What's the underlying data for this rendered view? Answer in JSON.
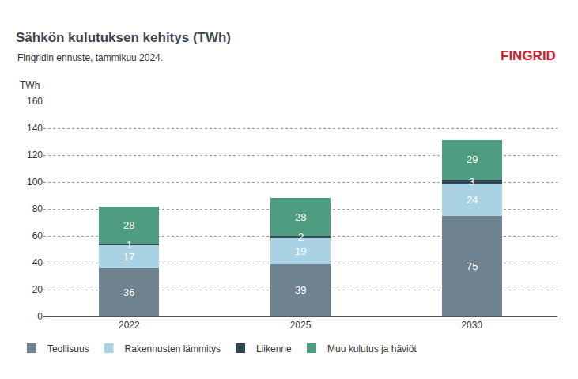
{
  "chart_data": {
    "type": "bar",
    "title": "Sähkön kulutuksen kehitys (TWh)",
    "subtitle": "Fingridin ennuste, tammikuu 2024.",
    "logo": "FINGRID",
    "ylabel": "TWh",
    "categories": [
      "2022",
      "2025",
      "2030"
    ],
    "series": [
      {
        "name": "Teollisuus",
        "color": "#6e8290",
        "values": [
          36,
          39,
          75
        ]
      },
      {
        "name": "Rakennusten lämmitys",
        "color": "#a9d3e5",
        "values": [
          17,
          19,
          24
        ]
      },
      {
        "name": "Liikenne",
        "color": "#2f4752",
        "values": [
          1,
          2,
          3
        ]
      },
      {
        "name": "Muu kulutus ja häviöt",
        "color": "#4f9d80",
        "values": [
          28,
          28,
          29
        ]
      }
    ],
    "ylim": [
      0,
      160
    ],
    "yticks": [
      0,
      20,
      40,
      60,
      80,
      100,
      120,
      140,
      160
    ],
    "grid": true,
    "stacked": true,
    "data_labels": true,
    "legend": "bottom"
  }
}
